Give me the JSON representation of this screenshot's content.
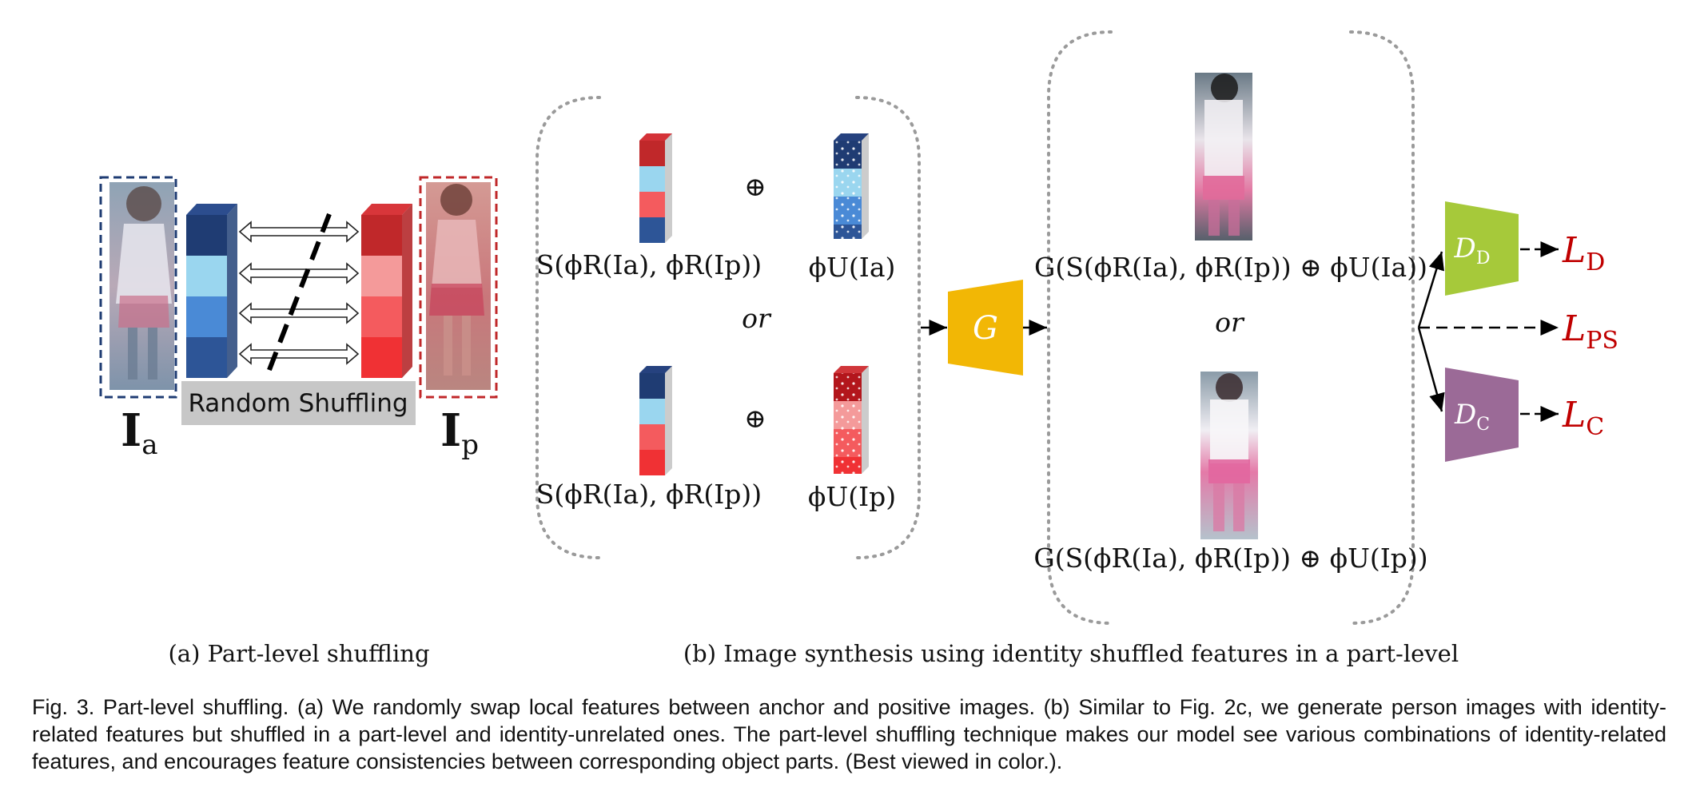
{
  "panel_a": {
    "left_symbol": "I",
    "left_sub": "a",
    "right_symbol": "I",
    "right_sub": "p",
    "shuffle_label": "Random Shuffling",
    "subcaption": "(a) Part-level shuffling"
  },
  "panel_b": {
    "oplus_top": "⊕",
    "oplus_bottom": "⊕",
    "shuffle_expr_top": "S(ϕR(Ia), ϕR(Ip))",
    "shuffle_expr_bottom": "S(ϕR(Ia), ϕR(Ip))",
    "unrelated_expr_top": "ϕU(Ia)",
    "unrelated_expr_bottom": "ϕU(Ip)",
    "or_left": "or",
    "generator": "G",
    "gen_expr_top": "G(S(ϕR(Ia), ϕR(Ip)) ⊕ ϕU(Ia))",
    "gen_expr_bottom": "G(S(ϕR(Ia), ϕR(Ip)) ⊕ ϕU(Ip))",
    "or_right": "or",
    "disc_d": "D",
    "disc_d_sub": "D",
    "disc_c": "D",
    "disc_c_sub": "C",
    "loss_d": "L",
    "loss_d_sub": "D",
    "loss_ps": "L",
    "loss_ps_sub": "PS",
    "loss_c": "L",
    "loss_c_sub": "C",
    "subcaption": "(b) Image synthesis using identity shuffled features in a part-level"
  },
  "colors": {
    "anchor_blue": "#1f3c73",
    "positive_red": "#c0282a",
    "generator": "#f2b705",
    "disc_domain": "#a6c93a",
    "disc_class": "#9b6a97",
    "loss": "#c00000",
    "shuffle_box": "#c7c7c7"
  },
  "caption": "Fig. 3. Part-level shuffling. (a) We randomly swap local features between anchor and positive images. (b) Similar to Fig. 2c, we generate person images with identity-related features but shuffled in a part-level and identity-unrelated ones. The part-level shuffling technique makes our model see various combinations of identity-related features, and encourages feature consistencies between corresponding object parts. (Best viewed in color.)."
}
